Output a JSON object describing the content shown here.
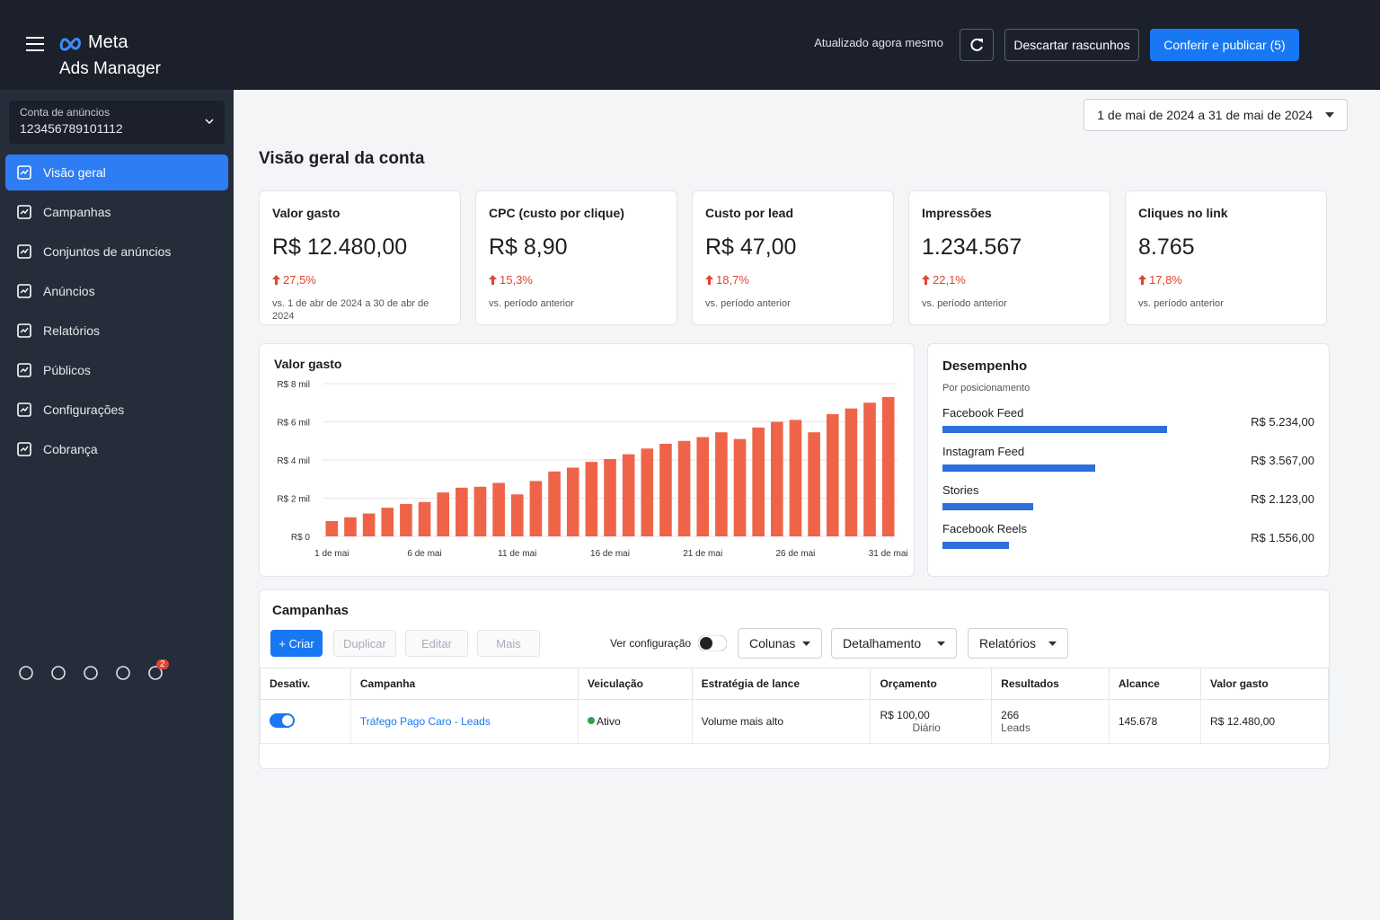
{
  "header": {
    "brand": "Meta",
    "product": "Ads Manager",
    "status": "Atualizado agora mesmo",
    "discard": "Descartar rascunhos",
    "publish": "Conferir e publicar (5)"
  },
  "account": {
    "label": "Conta de anúncios",
    "id": "123456789101112"
  },
  "nav": [
    "Visão geral",
    "Campanhas",
    "Conjuntos de anúncios",
    "Anúncios",
    "Relatórios",
    "Públicos",
    "Configurações",
    "Cobrança"
  ],
  "notification_count": 2,
  "date_range": "1 de mai de 2024 a 31 de mai de 2024",
  "section_title": "Visão geral da conta",
  "kpis": [
    {
      "title": "Valor gasto",
      "value": "R$ 12.480,00",
      "change": "27,5%",
      "comparison": "vs. 1 de abr de 2024 a 30 de abr de 2024"
    },
    {
      "title": "CPC (custo por clique)",
      "value": "R$ 8,90",
      "change": "15,3%",
      "comparison": "vs. período anterior"
    },
    {
      "title": "Custo por lead",
      "value": "R$ 47,00",
      "change": "18,7%",
      "comparison": "vs. período anterior"
    },
    {
      "title": "Impressões",
      "value": "1.234.567",
      "change": "22,1%",
      "comparison": "vs. período anterior"
    },
    {
      "title": "Cliques no link",
      "value": "8.765",
      "change": "17,8%",
      "comparison": "vs. período anterior"
    }
  ],
  "chart_data": {
    "type": "bar",
    "title": "Valor gasto",
    "categories": [
      "1 de mai",
      null,
      null,
      null,
      null,
      "6 de mai",
      null,
      null,
      null,
      null,
      "11 de mai",
      null,
      null,
      null,
      null,
      "16 de mai",
      null,
      null,
      null,
      null,
      "21 de mai",
      null,
      null,
      null,
      null,
      "26 de mai",
      null,
      null,
      null,
      null,
      "31 de mai"
    ],
    "values": [
      800,
      1000,
      1200,
      1500,
      1700,
      1800,
      2300,
      2550,
      2600,
      2800,
      2200,
      2900,
      3400,
      3600,
      3900,
      4050,
      4300,
      4600,
      4850,
      5000,
      5200,
      5450,
      5100,
      5700,
      6000,
      6100,
      5450,
      6400,
      6700,
      7000,
      7300
    ],
    "color": "#ef6448",
    "ylim": [
      0,
      8000
    ],
    "yticks": [
      {
        "value": 0,
        "label": "R$ 0"
      },
      {
        "value": 2000,
        "label": "R$ 2 mil"
      },
      {
        "value": 4000,
        "label": "R$ 4 mil"
      },
      {
        "value": 6000,
        "label": "R$ 6 mil"
      },
      {
        "value": 8000,
        "label": "R$ 8 mil"
      }
    ],
    "grid": true
  },
  "performance": {
    "title": "Desempenho",
    "subtitle": "Por posicionamento",
    "color": "#2d6fdb",
    "items": [
      {
        "name": "Facebook Feed",
        "value": 5234,
        "label": "R$ 5.234,00"
      },
      {
        "name": "Instagram Feed",
        "value": 3567,
        "label": "R$ 3.567,00"
      },
      {
        "name": "Stories",
        "value": 2123,
        "label": "R$ 2.123,00"
      },
      {
        "name": "Facebook Reels",
        "value": 1556,
        "label": "R$ 1.556,00"
      }
    ]
  },
  "campaigns": {
    "title": "Campanhas",
    "create": "+ Criar",
    "buttons": [
      "Duplicar",
      "Editar",
      "Mais"
    ],
    "view_config": "Ver configuração",
    "dropdowns": [
      "Colunas",
      "Detalhamento",
      "Relatórios"
    ],
    "columns": [
      "Desativ.",
      "Campanha",
      "Veiculação",
      "Estratégia de lance",
      "Orçamento",
      "Resultados",
      "Alcance",
      "Valor gasto"
    ],
    "rows": [
      {
        "campaign": "Tráfego Pago Caro - Leads",
        "delivery": "Ativo",
        "bid": "Volume mais alto",
        "budget": "R$ 100,00",
        "budget_type": "Diário",
        "results": "266",
        "results_type": "Leads",
        "reach": "145.678",
        "spent": "R$ 12.480,00"
      }
    ]
  }
}
